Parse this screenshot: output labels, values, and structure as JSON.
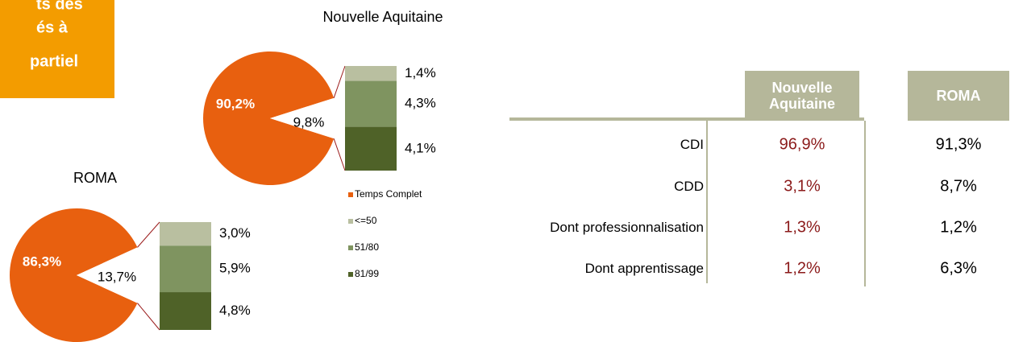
{
  "banner": {
    "lines": [
      "ts des",
      "és à",
      "partiel"
    ]
  },
  "legend": {
    "names": [
      "Temps Complet",
      "<=50",
      "51/80",
      "81/99"
    ],
    "colors": [
      "#e8600f",
      "#b9bfa0",
      "#7f9460",
      "#4f6228"
    ]
  },
  "chart_data": [
    {
      "type": "bar-of-pie",
      "title": "Nouvelle Aquitaine",
      "values": [
        90.2,
        9.8
      ],
      "value_labels": [
        "90,2%",
        "9,8%"
      ],
      "bar": {
        "values": [
          1.4,
          4.3,
          4.1
        ],
        "value_labels": [
          "1,4%",
          "4,3%",
          "4,1%"
        ]
      }
    },
    {
      "type": "bar-of-pie",
      "title": "ROMA",
      "values": [
        86.3,
        13.7
      ],
      "value_labels": [
        "86,3%",
        "13,7%"
      ],
      "bar": {
        "values": [
          3.0,
          5.9,
          4.8
        ],
        "value_labels": [
          "3,0%",
          "5,9%",
          "4,8%"
        ]
      }
    }
  ],
  "table": {
    "columns": [
      "Nouvelle Aquitaine",
      "ROMA"
    ],
    "rows": [
      {
        "label": "CDI",
        "values": [
          "96,9%",
          "91,3%"
        ]
      },
      {
        "label": "CDD",
        "values": [
          "3,1%",
          "8,7%"
        ]
      },
      {
        "label": "Dont professionnalisation",
        "values": [
          "1,3%",
          "1,2%"
        ]
      },
      {
        "label": "Dont apprentissage",
        "values": [
          "1,2%",
          "6,3%"
        ]
      }
    ]
  }
}
